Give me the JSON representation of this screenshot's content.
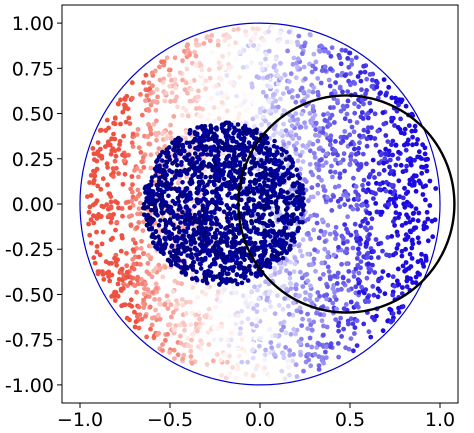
{
  "chart_data": {
    "type": "scatter",
    "xlim": [
      -1.1,
      1.1
    ],
    "ylim": [
      -1.1,
      1.1
    ],
    "x_ticks": [
      -1.0,
      -0.5,
      0.0,
      0.5,
      1.0
    ],
    "x_tick_labels": [
      "−1.0",
      "−0.5",
      "0.0",
      "0.5",
      "1.0"
    ],
    "y_ticks": [
      1.0,
      0.75,
      0.5,
      0.25,
      0.0,
      -0.25,
      -0.5,
      -0.75,
      -1.0
    ],
    "y_tick_labels": [
      "1.00",
      "0.75",
      "0.50",
      "0.25",
      "0.00",
      "-0.25",
      "-0.50",
      "-0.75",
      "-1.00"
    ],
    "grid": false,
    "legend": "none",
    "colormap": [
      "#1c0be0",
      "#ffffff",
      "#f05040"
    ],
    "series": [
      {
        "values": {
          "shape": "point cloud",
          "extent": "unit disk",
          "center": [
            0,
            0
          ],
          "radius": 0.98,
          "color": "coolwarm gradient"
        }
      },
      {
        "values": {
          "shape": "point cloud",
          "extent": "disk",
          "center": [
            -0.2,
            0.0
          ],
          "radius": 0.45,
          "color": "#00009a"
        }
      }
    ],
    "overlays": [
      {
        "shape": "circle",
        "center": [
          0.0,
          0.0
        ],
        "radius": 1.0,
        "color": "#0000cc"
      },
      {
        "shape": "circle",
        "center": [
          0.48,
          0.0
        ],
        "radius": 0.6,
        "color": "#000000"
      }
    ]
  }
}
